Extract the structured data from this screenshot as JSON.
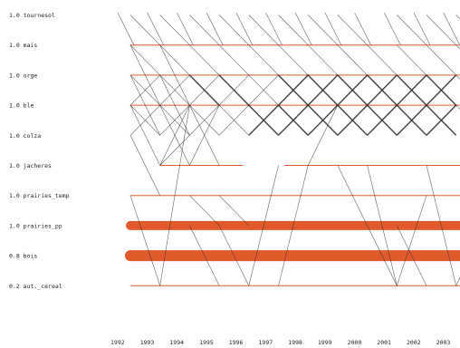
{
  "chart_data": {
    "type": "sequence-transition",
    "title": "",
    "xlabel": "",
    "ylabel": "",
    "years": [
      "1992",
      "1993",
      "1994",
      "1995",
      "1996",
      "1997",
      "1998",
      "1999",
      "2000",
      "2001",
      "2002",
      "2003"
    ],
    "states": [
      {
        "value": "1.0",
        "name": "tournesol",
        "bar_from": null,
        "bar_to": null,
        "bar_weight": 0
      },
      {
        "value": "1.0",
        "name": "mais",
        "bar_from": 1992,
        "bar_to": 2003.8,
        "bar_weight": 1
      },
      {
        "value": "1.0",
        "name": "orge",
        "bar_from": 1992,
        "bar_to": 2003.8,
        "bar_weight": 1
      },
      {
        "value": "1.0",
        "name": "ble",
        "bar_from": 1992,
        "bar_to": 2003.8,
        "bar_weight": 1
      },
      {
        "value": "1.0",
        "name": "colza",
        "bar_from": null,
        "bar_to": null,
        "bar_weight": 0
      },
      {
        "value": "1.0",
        "name": "jacheres",
        "bar_from": 1993,
        "bar_to": 1995.8,
        "bar_weight": 1,
        "bar2_from": 1997.2,
        "bar2_to": 2003.8
      },
      {
        "value": "1.0",
        "name": "prairies_temp",
        "bar_from": 1992,
        "bar_to": 2003.8,
        "bar_weight": 1
      },
      {
        "value": "1.0",
        "name": "prairies_pp",
        "bar_from": 1992,
        "bar_to": 2003.8,
        "bar_weight": 10
      },
      {
        "value": "0.8",
        "name": "bois",
        "bar_from": 1992,
        "bar_to": 2003.8,
        "bar_weight": 12
      },
      {
        "value": "0.2",
        "name": "aut._cereal",
        "bar_from": 1992,
        "bar_to": 2003.8,
        "bar_weight": 1
      }
    ],
    "transitions": [
      {
        "from_year": 1992,
        "from": "tournesol",
        "to": "mais",
        "w": 1
      },
      {
        "from_year": 1992,
        "from": "mais",
        "to": "orge",
        "w": 1
      },
      {
        "from_year": 1992,
        "from": "mais",
        "to": "ble",
        "w": 1
      },
      {
        "from_year": 1992,
        "from": "orge",
        "to": "ble",
        "w": 1
      },
      {
        "from_year": 1992,
        "from": "orge",
        "to": "colza",
        "w": 1
      },
      {
        "from_year": 1992,
        "from": "ble",
        "to": "orge",
        "w": 1
      },
      {
        "from_year": 1992,
        "from": "ble",
        "to": "colza",
        "w": 1
      },
      {
        "from_year": 1992,
        "from": "ble",
        "to": "jacheres",
        "w": 1
      },
      {
        "from_year": 1992,
        "from": "colza",
        "to": "ble",
        "w": 1
      },
      {
        "from_year": 1992,
        "from": "colza",
        "to": "prairies_temp",
        "w": 1
      },
      {
        "from_year": 1992,
        "from": "prairies_temp",
        "to": "aut._cereal",
        "w": 1
      },
      {
        "from_year": 1993,
        "from": "tournesol",
        "to": "mais",
        "w": 1
      },
      {
        "from_year": 1993,
        "from": "mais",
        "to": "orge",
        "w": 1
      },
      {
        "from_year": 1993,
        "from": "mais",
        "to": "ble",
        "w": 1
      },
      {
        "from_year": 1993,
        "from": "orge",
        "to": "ble",
        "w": 1
      },
      {
        "from_year": 1993,
        "from": "orge",
        "to": "colza",
        "w": 1
      },
      {
        "from_year": 1993,
        "from": "ble",
        "to": "orge",
        "w": 1
      },
      {
        "from_year": 1993,
        "from": "ble",
        "to": "colza",
        "w": 1
      },
      {
        "from_year": 1993,
        "from": "ble",
        "to": "jacheres",
        "w": 1
      },
      {
        "from_year": 1993,
        "from": "colza",
        "to": "ble",
        "w": 1
      },
      {
        "from_year": 1993,
        "from": "jacheres",
        "to": "ble",
        "w": 1
      },
      {
        "from_year": 1993,
        "from": "jacheres",
        "to": "colza",
        "w": 1
      },
      {
        "from_year": 1993,
        "from": "aut._cereal",
        "to": "ble",
        "w": 1
      },
      {
        "from_year": 1994,
        "from": "tournesol",
        "to": "mais",
        "w": 1
      },
      {
        "from_year": 1994,
        "from": "mais",
        "to": "orge",
        "w": 1
      },
      {
        "from_year": 1994,
        "from": "orge",
        "to": "ble",
        "w": 2
      },
      {
        "from_year": 1994,
        "from": "ble",
        "to": "orge",
        "w": 1
      },
      {
        "from_year": 1994,
        "from": "ble",
        "to": "colza",
        "w": 1
      },
      {
        "from_year": 1994,
        "from": "ble",
        "to": "jacheres",
        "w": 1
      },
      {
        "from_year": 1994,
        "from": "colza",
        "to": "ble",
        "w": 1
      },
      {
        "from_year": 1994,
        "from": "jacheres",
        "to": "ble",
        "w": 1
      },
      {
        "from_year": 1994,
        "from": "prairies_temp",
        "to": "prairies_pp",
        "w": 1
      },
      {
        "from_year": 1994,
        "from": "prairies_pp",
        "to": "aut._cereal",
        "w": 1
      },
      {
        "from_year": 1995,
        "from": "tournesol",
        "to": "mais",
        "w": 1
      },
      {
        "from_year": 1995,
        "from": "mais",
        "to": "orge",
        "w": 1
      },
      {
        "from_year": 1995,
        "from": "orge",
        "to": "ble",
        "w": 2
      },
      {
        "from_year": 1995,
        "from": "ble",
        "to": "orge",
        "w": 1
      },
      {
        "from_year": 1995,
        "from": "ble",
        "to": "colza",
        "w": 1
      },
      {
        "from_year": 1995,
        "from": "colza",
        "to": "ble",
        "w": 1
      },
      {
        "from_year": 1995,
        "from": "prairies_temp",
        "to": "prairies_pp",
        "w": 1
      },
      {
        "from_year": 1995,
        "from": "prairies_pp",
        "to": "aut._cereal",
        "w": 1
      },
      {
        "from_year": 1996,
        "from": "tournesol",
        "to": "mais",
        "w": 1
      },
      {
        "from_year": 1996,
        "from": "mais",
        "to": "orge",
        "w": 1
      },
      {
        "from_year": 1996,
        "from": "orge",
        "to": "ble",
        "w": 1
      },
      {
        "from_year": 1996,
        "from": "ble",
        "to": "orge",
        "w": 1
      },
      {
        "from_year": 1996,
        "from": "ble",
        "to": "colza",
        "w": 2
      },
      {
        "from_year": 1996,
        "from": "colza",
        "to": "ble",
        "w": 2
      },
      {
        "from_year": 1996,
        "from": "aut._cereal",
        "to": "jacheres",
        "w": 1
      },
      {
        "from_year": 1997,
        "from": "tournesol",
        "to": "mais",
        "w": 1
      },
      {
        "from_year": 1997,
        "from": "mais",
        "to": "orge",
        "w": 1
      },
      {
        "from_year": 1997,
        "from": "orge",
        "to": "ble",
        "w": 2
      },
      {
        "from_year": 1997,
        "from": "ble",
        "to": "orge",
        "w": 2
      },
      {
        "from_year": 1997,
        "from": "ble",
        "to": "colza",
        "w": 2
      },
      {
        "from_year": 1997,
        "from": "colza",
        "to": "ble",
        "w": 2
      },
      {
        "from_year": 1997,
        "from": "aut._cereal",
        "to": "jacheres",
        "w": 1
      },
      {
        "from_year": 1998,
        "from": "tournesol",
        "to": "mais",
        "w": 1
      },
      {
        "from_year": 1998,
        "from": "mais",
        "to": "orge",
        "w": 1
      },
      {
        "from_year": 1998,
        "from": "orge",
        "to": "ble",
        "w": 2
      },
      {
        "from_year": 1998,
        "from": "ble",
        "to": "orge",
        "w": 2
      },
      {
        "from_year": 1998,
        "from": "ble",
        "to": "colza",
        "w": 2
      },
      {
        "from_year": 1998,
        "from": "colza",
        "to": "ble",
        "w": 2
      },
      {
        "from_year": 1998,
        "from": "jacheres",
        "to": "ble",
        "w": 1
      },
      {
        "from_year": 1999,
        "from": "tournesol",
        "to": "mais",
        "w": 1
      },
      {
        "from_year": 1999,
        "from": "mais",
        "to": "orge",
        "w": 1
      },
      {
        "from_year": 1999,
        "from": "orge",
        "to": "ble",
        "w": 2
      },
      {
        "from_year": 1999,
        "from": "ble",
        "to": "orge",
        "w": 2
      },
      {
        "from_year": 1999,
        "from": "ble",
        "to": "colza",
        "w": 2
      },
      {
        "from_year": 1999,
        "from": "colza",
        "to": "ble",
        "w": 2
      },
      {
        "from_year": 1999,
        "from": "jacheres",
        "to": "prairies_pp",
        "w": 1
      },
      {
        "from_year": 2000,
        "from": "mais",
        "to": "orge",
        "w": 1
      },
      {
        "from_year": 2000,
        "from": "orge",
        "to": "ble",
        "w": 2
      },
      {
        "from_year": 2000,
        "from": "ble",
        "to": "orge",
        "w": 2
      },
      {
        "from_year": 2000,
        "from": "ble",
        "to": "colza",
        "w": 2
      },
      {
        "from_year": 2000,
        "from": "colza",
        "to": "ble",
        "w": 2
      },
      {
        "from_year": 2000,
        "from": "jacheres",
        "to": "aut._cereal",
        "w": 1
      },
      {
        "from_year": 2000,
        "from": "prairies_pp",
        "to": "aut._cereal",
        "w": 1
      },
      {
        "from_year": 2001,
        "from": "tournesol",
        "to": "mais",
        "w": 1
      },
      {
        "from_year": 2001,
        "from": "mais",
        "to": "orge",
        "w": 1
      },
      {
        "from_year": 2001,
        "from": "orge",
        "to": "ble",
        "w": 2
      },
      {
        "from_year": 2001,
        "from": "ble",
        "to": "orge",
        "w": 2
      },
      {
        "from_year": 2001,
        "from": "ble",
        "to": "colza",
        "w": 2
      },
      {
        "from_year": 2001,
        "from": "colza",
        "to": "ble",
        "w": 2
      },
      {
        "from_year": 2001,
        "from": "aut._cereal",
        "to": "prairies_temp",
        "w": 1
      },
      {
        "from_year": 2001,
        "from": "prairies_pp",
        "to": "aut._cereal",
        "w": 1
      },
      {
        "from_year": 2002,
        "from": "tournesol",
        "to": "mais",
        "w": 1
      },
      {
        "from_year": 2002,
        "from": "mais",
        "to": "orge",
        "w": 1
      },
      {
        "from_year": 2002,
        "from": "orge",
        "to": "ble",
        "w": 2
      },
      {
        "from_year": 2002,
        "from": "ble",
        "to": "orge",
        "w": 2
      },
      {
        "from_year": 2002,
        "from": "ble",
        "to": "colza",
        "w": 2
      },
      {
        "from_year": 2002,
        "from": "colza",
        "to": "ble",
        "w": 2
      },
      {
        "from_year": 2002,
        "from": "jacheres",
        "to": "aut._cereal",
        "w": 1
      },
      {
        "from_year": 2003,
        "from": "tournesol",
        "to": "mais",
        "w": 1
      },
      {
        "from_year": 2003,
        "from": "mais",
        "to": "orge",
        "w": 1
      },
      {
        "from_year": 2003,
        "from": "orge",
        "to": "ble",
        "w": 1
      },
      {
        "from_year": 2003,
        "from": "ble",
        "to": "colza",
        "w": 1
      },
      {
        "from_year": 2003,
        "from": "aut._cereal",
        "to": "prairies_pp",
        "w": 1
      }
    ],
    "colors": {
      "state_bar": "#e05a2c",
      "transition": "#2b2b2b",
      "background": "#ffffff"
    },
    "grid": false,
    "legend": "none"
  }
}
